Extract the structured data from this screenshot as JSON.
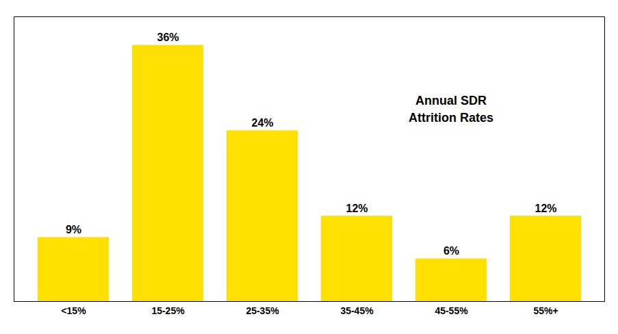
{
  "chart_data": {
    "type": "bar",
    "categories": [
      "<15%",
      "15-25%",
      "25-35%",
      "35-45%",
      "45-55%",
      "55%+"
    ],
    "values": [
      9,
      36,
      24,
      12,
      6,
      12
    ],
    "value_labels": [
      "9%",
      "36%",
      "24%",
      "12%",
      "6%",
      "12%"
    ],
    "data_labels": true,
    "color": "#FFE000",
    "ylim": [
      0,
      40
    ],
    "tick_labels": "x",
    "annotations": [
      "Annual SDR\nAttrition Rates"
    ]
  }
}
